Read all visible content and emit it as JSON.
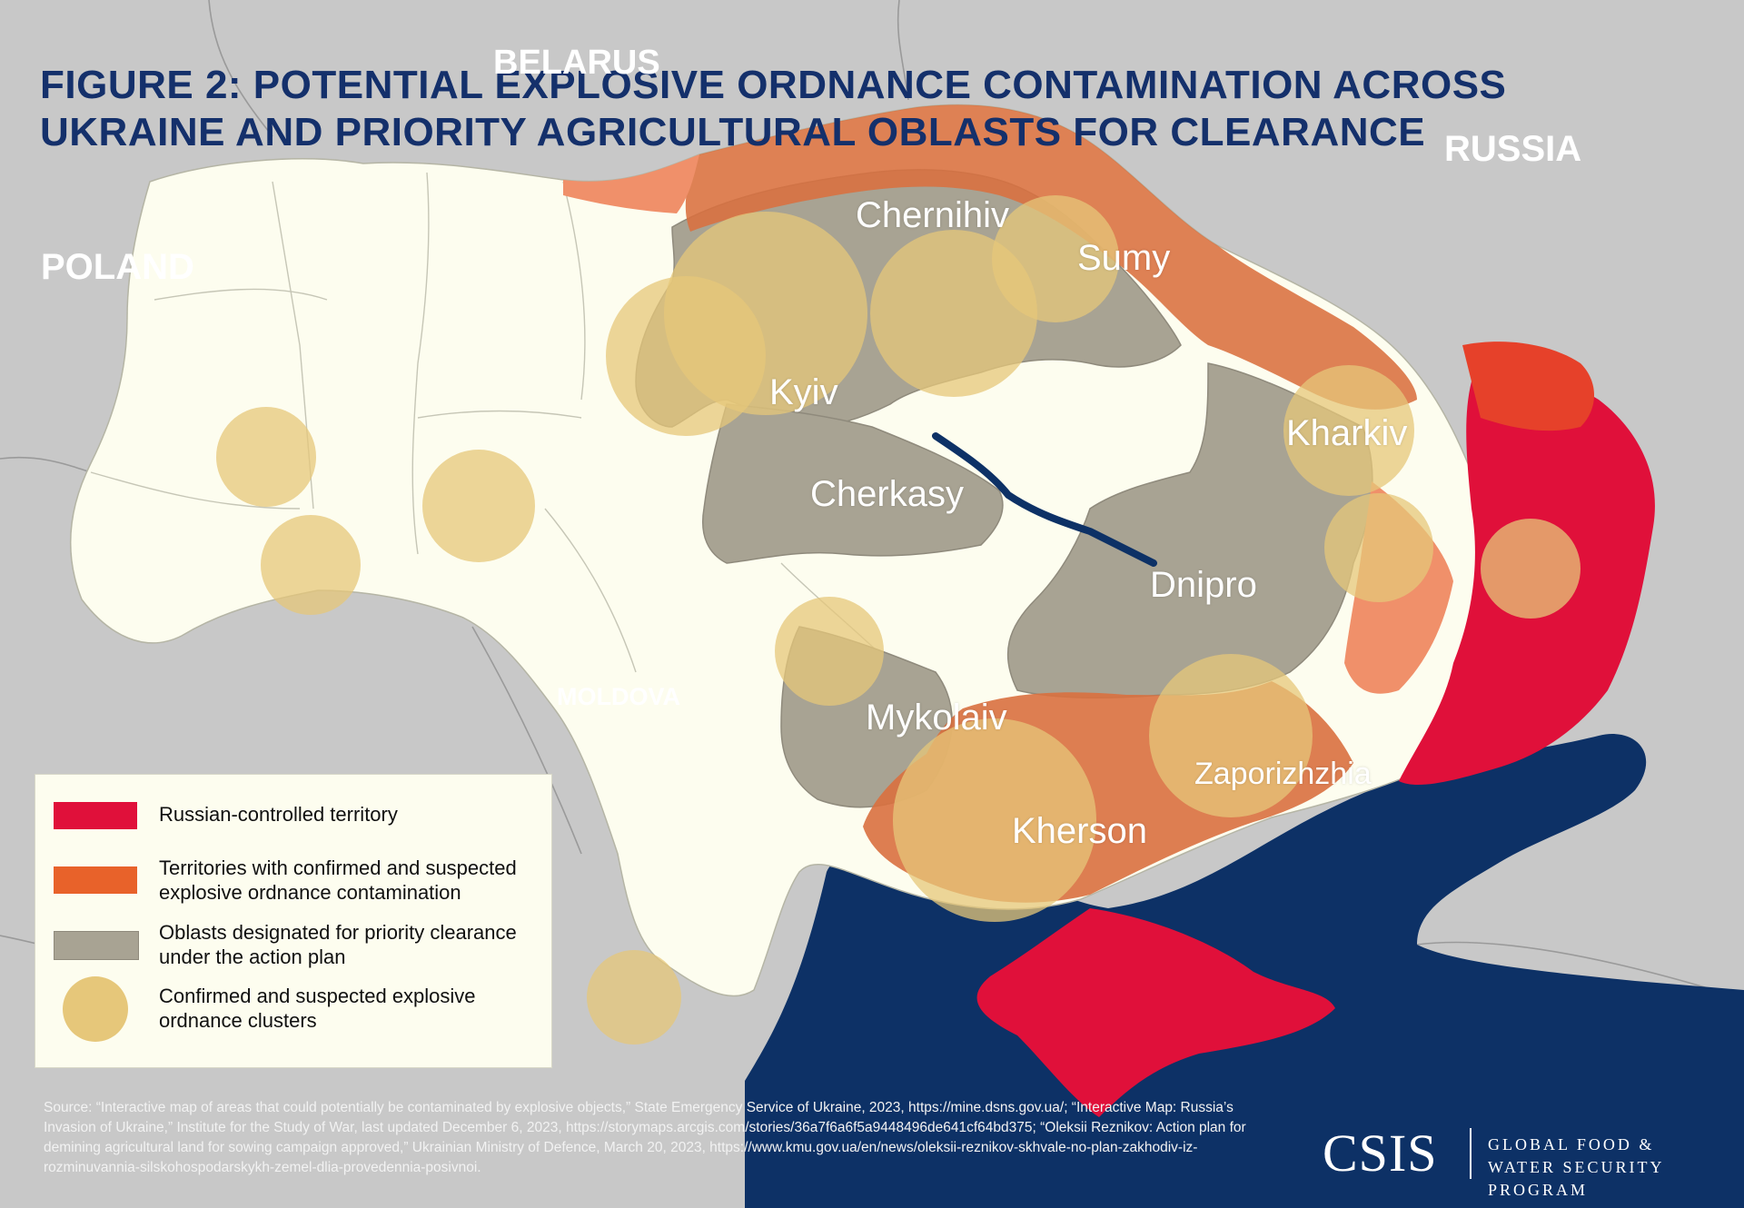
{
  "title": "FIGURE 2: POTENTIAL EXPLOSIVE ORDNANCE CONTAMINATION ACROSS UKRAINE AND PRIORITY AGRICULTURAL OBLASTS FOR CLEARANCE",
  "countries": {
    "belarus": "BELARUS",
    "russia": "RUSSIA",
    "poland": "POLAND",
    "moldova": "MOLDOVA"
  },
  "oblasts": {
    "chernihiv": "Chernihiv",
    "sumy": "Sumy",
    "kyiv": "Kyiv",
    "kharkiv": "Kharkiv",
    "cherkasy": "Cherkasy",
    "dnipro": "Dnipro",
    "mykolaiv": "Mykolaiv",
    "zaporizhzhia": "Zaporizhzhia",
    "kherson": "Kherson"
  },
  "legend": {
    "items": [
      {
        "label": "Russian-controlled territory",
        "color": "#e0103a"
      },
      {
        "label": "Territories with confirmed and suspected explosive ordnance contamination",
        "color": "#e8622a"
      },
      {
        "label": "Oblasts designated for priority clearance under the action plan",
        "color": "#a8a393"
      },
      {
        "label": "Confirmed and suspected explosive ordnance clusters",
        "color": "#e6c77a"
      }
    ]
  },
  "source": "Source: “Interactive map of areas that could potentially be contaminated by explosive objects,” State Emergency Service of Ukraine, 2023, https://mine.dsns.gov.ua/; “Interactive Map: Russia’s Invasion of Ukraine,” Institute for the Study of War, last updated December 6, 2023, https://storymaps.arcgis.com/stories/36a7f6a6f5a9448496de641cf64bd375; “Oleksii Reznikov: Action plan for demining agricultural land for sowing campaign approved,” Ukrainian Ministry of Defence, March 20, 2023, https://www.kmu.gov.ua/en/news/oleksii-reznikov-skhvale-no-plan-zakhodiv-iz-rozminuvannia-silskohospodarskykh-zemel-dlia-provedennia-posivnoi.",
  "logo": {
    "name": "CSIS",
    "program": "GLOBAL FOOD & WATER SECURITY PROGRAM"
  },
  "colors": {
    "background_countries": "#c8c8c8",
    "ukraine_land": "#fdfdef",
    "priority_oblast": "#a8a393",
    "contamination": "#d9703f",
    "russian_controlled": "#e0103a",
    "sea": "#0d3166",
    "cluster": "#e6c77a",
    "title": "#14306b"
  }
}
